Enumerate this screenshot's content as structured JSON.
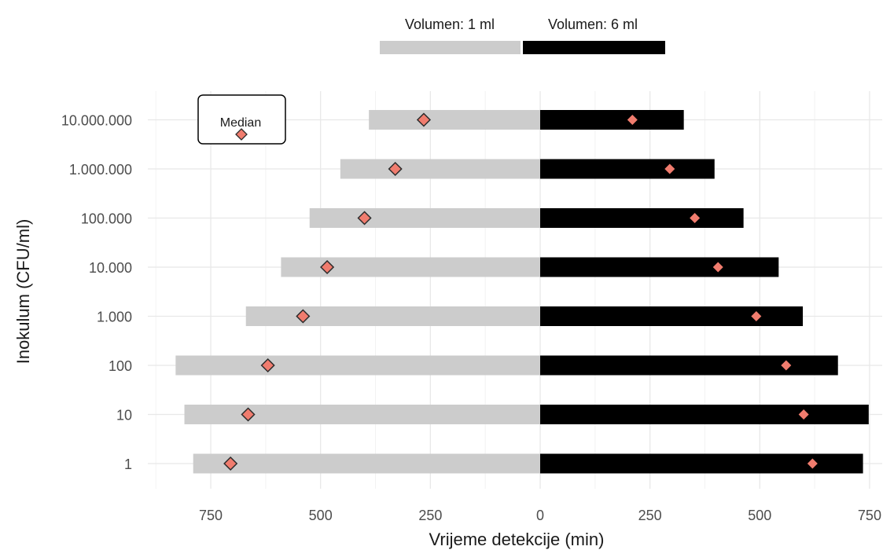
{
  "chart_data": {
    "type": "bar",
    "orientation": "horizontal-diverging",
    "xlabel": "Vrijeme detekcije (min)",
    "ylabel": "Inokulum (CFU/ml)",
    "categories": [
      "1",
      "10",
      "100",
      "1.000",
      "10.000",
      "100.000",
      "1.000.000",
      "10.000.000"
    ],
    "x_ticks": [
      750,
      500,
      250,
      0,
      250,
      500,
      750
    ],
    "grid": true,
    "legend_position": "top",
    "series": [
      {
        "name": "Volumen: 1 ml",
        "direction": "left",
        "color": "#cccccc",
        "values": [
          790,
          810,
          830,
          670,
          590,
          525,
          455,
          390
        ],
        "median": [
          705,
          665,
          620,
          540,
          485,
          400,
          330,
          265
        ],
        "median_marker": "outlined"
      },
      {
        "name": "Volumen: 6 ml",
        "direction": "right",
        "color": "#000000",
        "values": [
          735,
          748,
          678,
          598,
          543,
          463,
          397,
          327
        ],
        "median": [
          620,
          600,
          560,
          492,
          405,
          352,
          295,
          210
        ],
        "median_marker": "plain"
      }
    ],
    "median_color": "#f07c6e",
    "median_legend": {
      "label": "Median"
    }
  }
}
